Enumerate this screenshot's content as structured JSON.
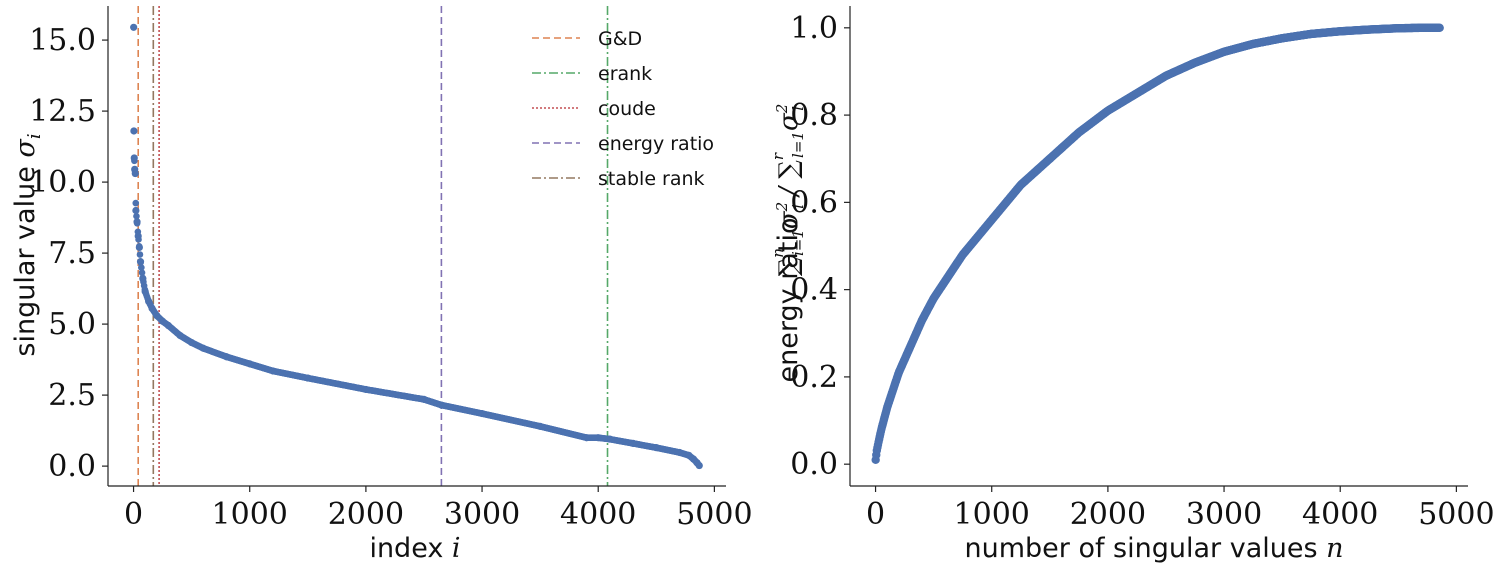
{
  "chart_data": [
    {
      "type": "scatter",
      "title": "",
      "xlabel": "index",
      "xlabel_symbol": "i",
      "ylabel": "singular value",
      "ylabel_symbol": "σ",
      "ylabel_subscript": "i",
      "xlim": [
        -220,
        5100
      ],
      "ylim": [
        -0.7,
        16.2
      ],
      "xticks": [
        0,
        1000,
        2000,
        3000,
        4000,
        5000
      ],
      "yticks": [
        0.0,
        2.5,
        5.0,
        7.5,
        10.0,
        12.5,
        15.0
      ],
      "xtick_labels": [
        "0",
        "1000",
        "2000",
        "3000",
        "4000",
        "5000"
      ],
      "ytick_labels": [
        "0.0",
        "2.5",
        "5.0",
        "7.5",
        "10.0",
        "12.5",
        "15.0"
      ],
      "grid": false,
      "series": [
        {
          "color": "#4c72b0",
          "x": [
            1,
            3,
            6,
            10,
            15,
            20,
            30,
            40,
            50,
            60,
            80,
            100,
            130,
            160,
            200,
            250,
            300,
            400,
            500,
            600,
            800,
            1000,
            1200,
            1500,
            2000,
            2500,
            2650,
            3000,
            3500,
            3900,
            4000,
            4100,
            4300,
            4500,
            4700,
            4780,
            4820,
            4850,
            4870
          ],
          "y": [
            15.45,
            11.8,
            10.85,
            10.45,
            10.3,
            9.0,
            8.6,
            8.1,
            7.7,
            7.2,
            6.6,
            6.15,
            5.8,
            5.55,
            5.3,
            5.1,
            4.95,
            4.6,
            4.35,
            4.15,
            3.85,
            3.6,
            3.35,
            3.1,
            2.7,
            2.35,
            2.15,
            1.85,
            1.4,
            1.0,
            1.0,
            0.95,
            0.8,
            0.65,
            0.48,
            0.38,
            0.25,
            0.12,
            0.02
          ]
        }
      ],
      "vlines": [
        {
          "name": "G&D",
          "x": 40,
          "color": "#dd8452",
          "style": "dashed"
        },
        {
          "name": "erank",
          "x": 4080,
          "color": "#55a868",
          "style": "dashdot"
        },
        {
          "name": "coude",
          "x": 220,
          "color": "#c44e52",
          "style": "dotted"
        },
        {
          "name": "energy ratio",
          "x": 2650,
          "color": "#8172b3",
          "style": "dashed"
        },
        {
          "name": "stable rank",
          "x": 170,
          "color": "#937860",
          "style": "dashdot"
        }
      ],
      "legend_position": "top-right"
    },
    {
      "type": "scatter",
      "title": "",
      "xlabel": "number of singular values",
      "xlabel_symbol": "n",
      "ylabel": "energy ratio",
      "ylabel_formula": "Σ_{i=1}^{n} σ_i² / Σ_{l=1}^{r} σ_l²",
      "xlim": [
        -220,
        5100
      ],
      "ylim": [
        -0.05,
        1.05
      ],
      "xticks": [
        0,
        1000,
        2000,
        3000,
        4000,
        5000
      ],
      "yticks": [
        0.0,
        0.2,
        0.4,
        0.6,
        0.8,
        1.0
      ],
      "xtick_labels": [
        "0",
        "1000",
        "2000",
        "3000",
        "4000",
        "5000"
      ],
      "ytick_labels": [
        "0.0",
        "0.2",
        "0.4",
        "0.6",
        "0.8",
        "1.0"
      ],
      "grid": false,
      "series": [
        {
          "color": "#4c72b0",
          "x": [
            1,
            10,
            25,
            50,
            100,
            200,
            300,
            400,
            500,
            750,
            1000,
            1250,
            1500,
            1750,
            2000,
            2250,
            2500,
            2750,
            3000,
            3250,
            3500,
            3750,
            4000,
            4250,
            4500,
            4700,
            4860
          ],
          "y": [
            0.01,
            0.03,
            0.05,
            0.08,
            0.13,
            0.21,
            0.27,
            0.33,
            0.38,
            0.48,
            0.56,
            0.64,
            0.7,
            0.76,
            0.81,
            0.85,
            0.89,
            0.92,
            0.945,
            0.963,
            0.976,
            0.986,
            0.992,
            0.996,
            0.999,
            1.0,
            1.0
          ]
        }
      ]
    }
  ]
}
